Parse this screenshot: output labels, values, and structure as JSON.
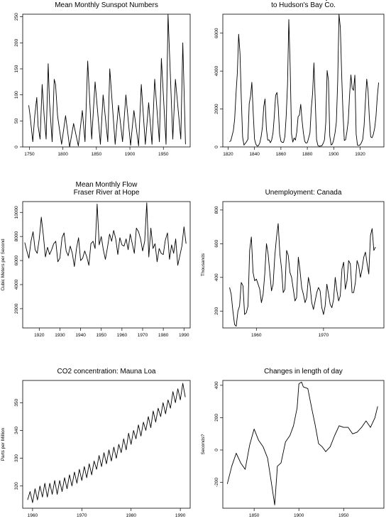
{
  "chart_data": [
    {
      "type": "line",
      "title": [
        "Mean Monthly Sunspot Numbers"
      ],
      "xlabel": "",
      "ylabel": "",
      "xlim": [
        1740,
        1990
      ],
      "ylim": [
        0,
        255
      ],
      "xticks": [
        1750,
        1800,
        1850,
        1900,
        1950
      ],
      "yticks": [
        0,
        50,
        100,
        150,
        200,
        250
      ],
      "series": [
        {
          "x": [
            1749,
            1751,
            1755,
            1758,
            1761,
            1763,
            1766,
            1769,
            1772,
            1775,
            1778,
            1780,
            1784,
            1787,
            1789,
            1792,
            1798,
            1804,
            1810,
            1816,
            1823,
            1829,
            1833,
            1837,
            1843,
            1848,
            1856,
            1860,
            1867,
            1870,
            1878,
            1883,
            1889,
            1894,
            1901,
            1906,
            1913,
            1917,
            1923,
            1928,
            1933,
            1937,
            1944,
            1947,
            1954,
            1957,
            1964,
            1968,
            1976,
            1979,
            1983
          ],
          "y": [
            80,
            60,
            10,
            60,
            95,
            40,
            15,
            120,
            60,
            15,
            160,
            85,
            10,
            130,
            120,
            60,
            5,
            60,
            0,
            45,
            2,
            70,
            10,
            165,
            15,
            125,
            5,
            100,
            10,
            150,
            5,
            80,
            10,
            100,
            3,
            70,
            2,
            120,
            5,
            85,
            5,
            130,
            10,
            170,
            5,
            255,
            15,
            130,
            15,
            200,
            5
          ]
        }
      ]
    },
    {
      "type": "line",
      "title": [
        "Annual Sales of Lynx",
        "to Hudson's Bay Co."
      ],
      "xlabel": "",
      "ylabel": "",
      "xlim": [
        1816,
        1938
      ],
      "ylim": [
        0,
        7000
      ],
      "xticks": [
        1820,
        1840,
        1860,
        1880,
        1900,
        1920
      ],
      "yticks": [
        0,
        2000,
        4000,
        6000
      ],
      "series": [
        {
          "x": [
            1821,
            1822,
            1823,
            1824,
            1825,
            1826,
            1827,
            1828,
            1829,
            1830,
            1831,
            1832,
            1833,
            1834,
            1835,
            1836,
            1837,
            1838,
            1839,
            1840,
            1841,
            1842,
            1843,
            1844,
            1845,
            1846,
            1847,
            1848,
            1849,
            1850,
            1851,
            1852,
            1853,
            1854,
            1855,
            1856,
            1857,
            1858,
            1859,
            1860,
            1861,
            1862,
            1863,
            1864,
            1865,
            1866,
            1867,
            1868,
            1869,
            1870,
            1871,
            1872,
            1873,
            1874,
            1875,
            1876,
            1877,
            1878,
            1879,
            1880,
            1881,
            1882,
            1883,
            1884,
            1885,
            1886,
            1887,
            1888,
            1889,
            1890,
            1891,
            1892,
            1893,
            1894,
            1895,
            1896,
            1897,
            1898,
            1899,
            1900,
            1901,
            1902,
            1903,
            1904,
            1905,
            1906,
            1907,
            1908,
            1909,
            1910,
            1911,
            1912,
            1913,
            1914,
            1915,
            1916,
            1917,
            1918,
            1919,
            1920,
            1921,
            1922,
            1923,
            1924,
            1925,
            1926,
            1927,
            1928,
            1929,
            1930,
            1931,
            1932,
            1933,
            1934
          ],
          "y": [
            269,
            321,
            585,
            871,
            1475,
            2821,
            3928,
            5943,
            4950,
            2577,
            523,
            98,
            184,
            279,
            409,
            2285,
            2685,
            3409,
            1824,
            409,
            151,
            45,
            68,
            213,
            546,
            1033,
            2129,
            2536,
            957,
            361,
            377,
            225,
            360,
            731,
            1638,
            2725,
            2871,
            2119,
            684,
            299,
            236,
            245,
            552,
            1623,
            3311,
            6721,
            4254,
            687,
            255,
            473,
            358,
            784,
            1594,
            1676,
            2251,
            1426,
            756,
            299,
            201,
            229,
            469,
            736,
            2042,
            2811,
            4431,
            2511,
            389,
            73,
            39,
            49,
            59,
            188,
            377,
            1292,
            4031,
            3495,
            587,
            105,
            153,
            387,
            758,
            1307,
            3465,
            6991,
            6313,
            3794,
            1836,
            345,
            382,
            808,
            1388,
            2713,
            3800,
            3091,
            2985,
            3790,
            674,
            81,
            80,
            108,
            229,
            399,
            1132,
            2432,
            3574,
            2935,
            1537,
            529,
            485,
            662,
            1000,
            1590,
            2657,
            3396
          ]
        }
      ]
    },
    {
      "type": "line",
      "title": [
        "Mean Monthly Flow",
        "Fraser River at Hope"
      ],
      "xlabel": "",
      "ylabel": "Cubic Meters per Second",
      "xlim": [
        1912,
        1993
      ],
      "ylim": [
        400,
        10900
      ],
      "xticks": [
        1920,
        1930,
        1940,
        1950,
        1960,
        1970,
        1980,
        1990
      ],
      "yticks": [
        2000,
        4000,
        6000,
        8000,
        10000
      ],
      "series": [
        {
          "x": [
            1913,
            1914,
            1915,
            1916,
            1917,
            1918,
            1919,
            1920,
            1921,
            1922,
            1923,
            1924,
            1925,
            1926,
            1927,
            1928,
            1929,
            1930,
            1931,
            1932,
            1933,
            1934,
            1935,
            1936,
            1937,
            1938,
            1939,
            1940,
            1941,
            1942,
            1943,
            1944,
            1945,
            1946,
            1947,
            1948,
            1949,
            1950,
            1951,
            1952,
            1953,
            1954,
            1955,
            1956,
            1957,
            1958,
            1959,
            1960,
            1961,
            1962,
            1963,
            1964,
            1965,
            1966,
            1967,
            1968,
            1969,
            1970,
            1971,
            1972,
            1973,
            1974,
            1975,
            1976,
            1977,
            1978,
            1979,
            1980,
            1981,
            1982,
            1983,
            1984,
            1985,
            1986,
            1987,
            1988,
            1989,
            1990,
            1991
          ],
          "y": [
            7500,
            6800,
            6200,
            7600,
            8400,
            6900,
            6600,
            7800,
            9600,
            8100,
            6300,
            7100,
            6500,
            6900,
            7400,
            7600,
            5900,
            6200,
            7900,
            8300,
            6800,
            6400,
            7200,
            6600,
            5500,
            7000,
            7900,
            6000,
            6200,
            6800,
            6300,
            5600,
            7400,
            7600,
            7000,
            10700,
            7300,
            8000,
            6900,
            6100,
            7100,
            8200,
            7600,
            8500,
            7800,
            6500,
            7900,
            7300,
            7200,
            7800,
            6900,
            8200,
            7400,
            6600,
            8700,
            8400,
            7800,
            6800,
            7600,
            10800,
            6300,
            8700,
            7000,
            7400,
            5900,
            7000,
            6600,
            6500,
            7700,
            8300,
            6100,
            7300,
            6600,
            7800,
            5600,
            6400,
            7200,
            8800,
            7400
          ]
        }
      ]
    },
    {
      "type": "line",
      "title": [
        "Unemployment: Canada"
      ],
      "xlabel": "",
      "ylabel": "Thousands",
      "xlim": [
        1955,
        1979
      ],
      "ylim": [
        100,
        850
      ],
      "xticks": [
        1960,
        1970
      ],
      "yticks": [
        200,
        400,
        600,
        800
      ],
      "series": [
        {
          "x": [
            1956.0,
            1956.25,
            1956.5,
            1956.75,
            1957.0,
            1957.25,
            1957.5,
            1957.75,
            1958.0,
            1958.25,
            1958.5,
            1958.75,
            1959.0,
            1959.25,
            1959.5,
            1959.75,
            1960.0,
            1960.25,
            1960.5,
            1960.75,
            1961.0,
            1961.25,
            1961.5,
            1961.75,
            1962.0,
            1962.25,
            1962.5,
            1962.75,
            1963.0,
            1963.25,
            1963.5,
            1963.75,
            1964.0,
            1964.25,
            1964.5,
            1964.75,
            1965.0,
            1965.25,
            1965.5,
            1965.75,
            1966.0,
            1966.25,
            1966.5,
            1966.75,
            1967.0,
            1967.25,
            1967.5,
            1967.75,
            1968.0,
            1968.25,
            1968.5,
            1968.75,
            1969.0,
            1969.25,
            1969.5,
            1969.75,
            1970.0,
            1970.25,
            1970.5,
            1970.75,
            1971.0,
            1971.25,
            1971.5,
            1971.75,
            1972.0,
            1972.25,
            1972.5,
            1972.75,
            1973.0,
            1973.25,
            1973.5,
            1973.75,
            1974.0,
            1974.25,
            1974.5,
            1974.75,
            1975.0,
            1975.25,
            1975.5,
            1975.75,
            1976.0,
            1976.25,
            1976.5,
            1976.75,
            1977.0,
            1977.25,
            1977.5,
            1977.75
          ],
          "y": [
            340,
            300,
            200,
            120,
            110,
            200,
            230,
            370,
            350,
            180,
            190,
            230,
            560,
            640,
            430,
            380,
            390,
            360,
            330,
            250,
            300,
            420,
            600,
            540,
            430,
            320,
            360,
            530,
            640,
            720,
            540,
            450,
            310,
            330,
            560,
            530,
            430,
            400,
            330,
            260,
            280,
            520,
            440,
            340,
            300,
            250,
            280,
            400,
            350,
            250,
            210,
            260,
            310,
            340,
            320,
            220,
            180,
            230,
            360,
            300,
            240,
            220,
            270,
            400,
            320,
            260,
            290,
            450,
            490,
            330,
            380,
            500,
            480,
            310,
            310,
            370,
            500,
            470,
            400,
            450,
            520,
            550,
            480,
            420,
            650,
            690,
            560,
            580
          ]
        }
      ]
    },
    {
      "type": "line",
      "title": [
        "CO2 concentration: Mauna Loa"
      ],
      "xlabel": "",
      "ylabel": "Parts per Million",
      "xlim": [
        1958,
        1992
      ],
      "ylim": [
        312,
        358
      ],
      "xticks": [
        1960,
        1970,
        1980,
        1990
      ],
      "yticks": [
        320,
        330,
        340,
        350
      ],
      "series": [
        {
          "x": [
            1959.0,
            1959.5,
            1960.0,
            1960.5,
            1961.0,
            1961.5,
            1962.0,
            1962.5,
            1963.0,
            1963.5,
            1964.0,
            1964.5,
            1965.0,
            1965.5,
            1966.0,
            1966.5,
            1967.0,
            1967.5,
            1968.0,
            1968.5,
            1969.0,
            1969.5,
            1970.0,
            1970.5,
            1971.0,
            1971.5,
            1972.0,
            1972.5,
            1973.0,
            1973.5,
            1974.0,
            1974.5,
            1975.0,
            1975.5,
            1976.0,
            1976.5,
            1977.0,
            1977.5,
            1978.0,
            1978.5,
            1979.0,
            1979.5,
            1980.0,
            1980.5,
            1981.0,
            1981.5,
            1982.0,
            1982.5,
            1983.0,
            1983.5,
            1984.0,
            1984.5,
            1985.0,
            1985.5,
            1986.0,
            1986.5,
            1987.0,
            1987.5,
            1988.0,
            1988.5,
            1989.0,
            1989.5,
            1990.0,
            1990.5,
            1991.0
          ],
          "y": [
            315,
            318,
            314,
            319,
            315,
            320,
            316,
            321,
            316,
            321,
            317,
            322,
            317,
            322,
            318,
            323,
            319,
            324,
            320,
            325,
            321,
            326,
            322,
            327,
            323,
            328,
            324,
            329,
            326,
            331,
            327,
            332,
            328,
            333,
            329,
            334,
            330,
            335,
            332,
            337,
            333,
            339,
            335,
            340,
            337,
            342,
            338,
            343,
            340,
            345,
            341,
            347,
            343,
            348,
            345,
            350,
            346,
            351,
            348,
            354,
            350,
            355,
            351,
            357,
            352
          ]
        }
      ]
    },
    {
      "type": "line",
      "title": [
        "Changes in length of day"
      ],
      "xlabel": "",
      "ylabel": "Seconds?",
      "xlim": [
        1815,
        1995
      ],
      "ylim": [
        -360,
        430
      ],
      "xticks": [
        1850,
        1900,
        1950
      ],
      "yticks": [
        -200,
        0,
        200,
        400
      ],
      "series": [
        {
          "x": [
            1820,
            1825,
            1830,
            1835,
            1840,
            1845,
            1850,
            1855,
            1860,
            1865,
            1870,
            1873,
            1876,
            1880,
            1885,
            1890,
            1894,
            1898,
            1900,
            1903,
            1905,
            1910,
            1915,
            1918,
            1922,
            1926,
            1930,
            1935,
            1940,
            1945,
            1950,
            1955,
            1960,
            1965,
            1970,
            1975,
            1980,
            1985,
            1988
          ],
          "y": [
            -210,
            -100,
            -20,
            -80,
            -120,
            30,
            130,
            60,
            20,
            -50,
            -230,
            -340,
            -100,
            -80,
            50,
            90,
            150,
            260,
            410,
            420,
            390,
            380,
            240,
            160,
            40,
            20,
            -10,
            20,
            90,
            150,
            140,
            140,
            100,
            110,
            140,
            180,
            140,
            200,
            270
          ]
        }
      ]
    }
  ]
}
